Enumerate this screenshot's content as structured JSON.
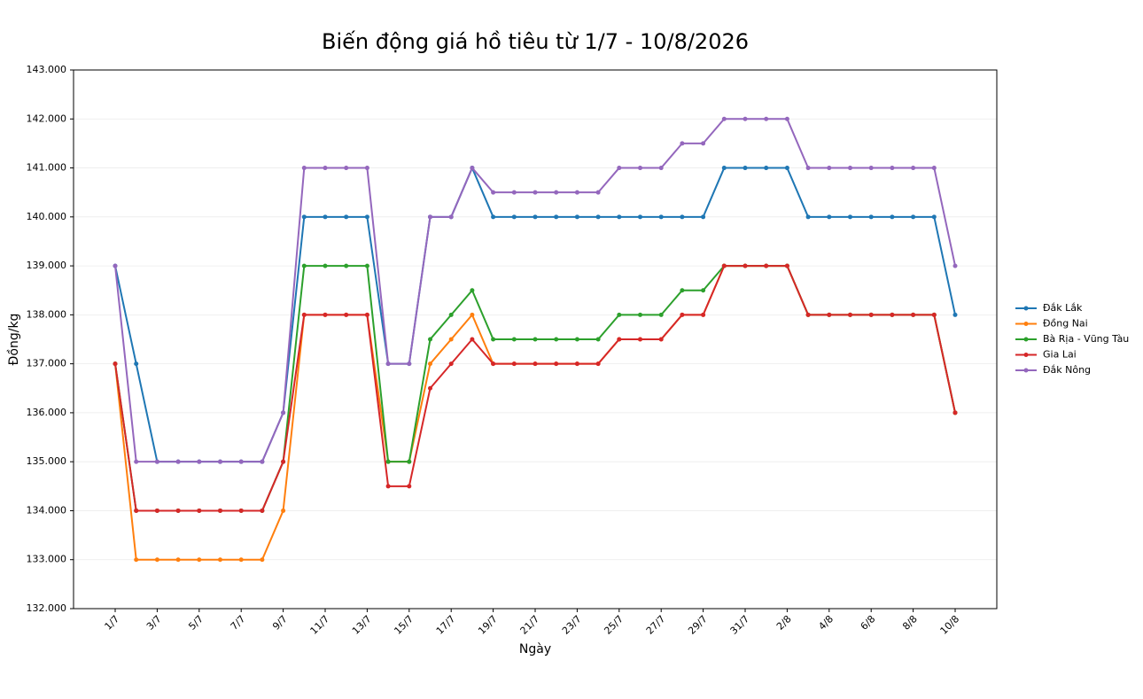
{
  "chart_data": {
    "type": "line",
    "title": "Biến động giá hồ tiêu từ 1/7 - 10/8/2026",
    "x_label": "Ngày",
    "y_label": "Đồng/kg",
    "categories": [
      "1/7",
      null,
      "3/7",
      null,
      "5/7",
      null,
      "7/7",
      null,
      "9/7",
      null,
      "11/7",
      null,
      "13/7",
      null,
      "15/7",
      null,
      "17/7",
      null,
      "19/7",
      null,
      "21/7",
      null,
      "23/7",
      null,
      "25/7",
      null,
      "27/7",
      null,
      "29/7",
      null,
      "31/7",
      null,
      "2/8",
      null,
      "4/8",
      null,
      "6/8",
      null,
      "8/8",
      null,
      "10/8"
    ],
    "series": [
      {
        "name": "Đắk Lắk",
        "color": "#1f77b4",
        "values": [
          139000,
          137000,
          135000,
          135000,
          135000,
          135000,
          135000,
          135000,
          136000,
          140000,
          140000,
          140000,
          140000,
          137000,
          137000,
          140000,
          140000,
          141000,
          140000,
          140000,
          140000,
          140000,
          140000,
          140000,
          140000,
          140000,
          140000,
          140000,
          140000,
          141000,
          141000,
          141000,
          141000,
          140000,
          140000,
          140000,
          140000,
          140000,
          140000,
          140000,
          138000
        ]
      },
      {
        "name": "Đồng Nai",
        "color": "#ff7f0e",
        "values": [
          137000,
          133000,
          133000,
          133000,
          133000,
          133000,
          133000,
          133000,
          134000,
          138000,
          138000,
          138000,
          138000,
          135000,
          135000,
          137000,
          137500,
          138000,
          137000,
          137000,
          137000,
          137000,
          137000,
          137000,
          137500,
          137500,
          137500,
          138000,
          138000,
          139000,
          139000,
          139000,
          139000,
          138000,
          138000,
          138000,
          138000,
          138000,
          138000,
          138000,
          136000
        ]
      },
      {
        "name": "Bà Rịa - Vũng Tàu",
        "color": "#2ca02c",
        "values": [
          137000,
          134000,
          134000,
          134000,
          134000,
          134000,
          134000,
          134000,
          135000,
          139000,
          139000,
          139000,
          139000,
          135000,
          135000,
          137500,
          138000,
          138500,
          137500,
          137500,
          137500,
          137500,
          137500,
          137500,
          138000,
          138000,
          138000,
          138500,
          138500,
          139000,
          139000,
          139000,
          139000,
          138000,
          138000,
          138000,
          138000,
          138000,
          138000,
          138000,
          136000
        ]
      },
      {
        "name": "Gia Lai",
        "color": "#d62728",
        "values": [
          137000,
          134000,
          134000,
          134000,
          134000,
          134000,
          134000,
          134000,
          135000,
          138000,
          138000,
          138000,
          138000,
          134500,
          134500,
          136500,
          137000,
          137500,
          137000,
          137000,
          137000,
          137000,
          137000,
          137000,
          137500,
          137500,
          137500,
          138000,
          138000,
          139000,
          139000,
          139000,
          139000,
          138000,
          138000,
          138000,
          138000,
          138000,
          138000,
          138000,
          136000
        ]
      },
      {
        "name": "Đắk Nông",
        "color": "#9467bd",
        "values": [
          139000,
          135000,
          135000,
          135000,
          135000,
          135000,
          135000,
          135000,
          136000,
          141000,
          141000,
          141000,
          141000,
          137000,
          137000,
          140000,
          140000,
          141000,
          140500,
          140500,
          140500,
          140500,
          140500,
          140500,
          141000,
          141000,
          141000,
          141500,
          141500,
          142000,
          142000,
          142000,
          142000,
          141000,
          141000,
          141000,
          141000,
          141000,
          141000,
          141000,
          139000
        ]
      }
    ],
    "ylim": [
      132000,
      143000
    ],
    "yticks": [
      {
        "value": 132000,
        "label": "132.000"
      },
      {
        "value": 133000,
        "label": "133.000"
      },
      {
        "value": 134000,
        "label": "134.000"
      },
      {
        "value": 135000,
        "label": "135.000"
      },
      {
        "value": 136000,
        "label": "136.000"
      },
      {
        "value": 137000,
        "label": "137.000"
      },
      {
        "value": 138000,
        "label": "138.000"
      },
      {
        "value": 139000,
        "label": "139.000"
      },
      {
        "value": 140000,
        "label": "140.000"
      },
      {
        "value": 141000,
        "label": "141.000"
      },
      {
        "value": 142000,
        "label": "142.000"
      },
      {
        "value": 143000,
        "label": "143.000"
      }
    ],
    "grid": true,
    "legend": "right"
  }
}
